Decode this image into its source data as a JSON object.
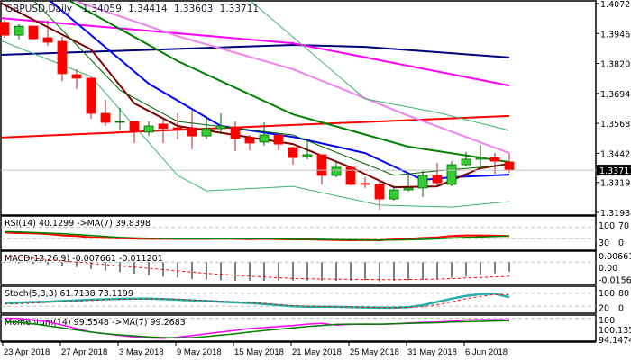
{
  "chart_data": {
    "type": "candlestick",
    "symbol_title": "GBPUSD,Daily",
    "ohlc_readout": [
      "1.34059",
      "1.34414",
      "1.33603",
      "1.33711"
    ],
    "current_price": "1.33711",
    "price_range": [
      1.31935,
      1.4072
    ],
    "price_ticks": [
      "1.40720",
      "1.39460",
      "1.38200",
      "1.36940",
      "1.35680",
      "1.34420",
      "1.33195",
      "1.31935"
    ],
    "date_ticks": [
      {
        "i": 0,
        "label": "23 Apr 2018"
      },
      {
        "i": 4,
        "label": "27 Apr 2018"
      },
      {
        "i": 8,
        "label": "3 May 2018"
      },
      {
        "i": 12,
        "label": "9 May 2018"
      },
      {
        "i": 16,
        "label": "15 May 2018"
      },
      {
        "i": 20,
        "label": "21 May 2018"
      },
      {
        "i": 24,
        "label": "25 May 2018"
      },
      {
        "i": 28,
        "label": "31 May 2018"
      },
      {
        "i": 32,
        "label": "6 Jun 2018"
      }
    ],
    "candles": [
      [
        1.3993,
        1.4004,
        1.3928,
        1.3939
      ],
      [
        1.3939,
        1.3985,
        1.3921,
        1.3977
      ],
      [
        1.3977,
        1.3977,
        1.3921,
        1.3924
      ],
      [
        1.3928,
        1.4,
        1.3894,
        1.3909
      ],
      [
        1.3913,
        1.3932,
        1.3746,
        1.3777
      ],
      [
        1.3773,
        1.3796,
        1.3712,
        1.3758
      ],
      [
        1.3758,
        1.3758,
        1.3587,
        1.361
      ],
      [
        1.361,
        1.3667,
        1.3557,
        1.3572
      ],
      [
        1.3574,
        1.3633,
        1.3538,
        1.3576
      ],
      [
        1.3576,
        1.3576,
        1.3485,
        1.3534
      ],
      [
        1.3531,
        1.3576,
        1.3515,
        1.3557
      ],
      [
        1.3565,
        1.3595,
        1.3485,
        1.3546
      ],
      [
        1.3549,
        1.361,
        1.35,
        1.3542
      ],
      [
        1.3549,
        1.3621,
        1.3459,
        1.3515
      ],
      [
        1.3515,
        1.3599,
        1.35,
        1.3546
      ],
      [
        1.3546,
        1.361,
        1.3523,
        1.3557
      ],
      [
        1.3553,
        1.3576,
        1.3451,
        1.3504
      ],
      [
        1.3508,
        1.3519,
        1.3455,
        1.3485
      ],
      [
        1.3489,
        1.3572,
        1.3474,
        1.3519
      ],
      [
        1.3519,
        1.3519,
        1.3455,
        1.3481
      ],
      [
        1.3466,
        1.347,
        1.3394,
        1.3424
      ],
      [
        1.3428,
        1.3493,
        1.3417,
        1.3436
      ],
      [
        1.3436,
        1.3436,
        1.3311,
        1.3349
      ],
      [
        1.3349,
        1.3409,
        1.3341,
        1.3383
      ],
      [
        1.3383,
        1.3383,
        1.3307,
        1.3311
      ],
      [
        1.3315,
        1.3341,
        1.3296,
        1.3313
      ],
      [
        1.3311,
        1.333,
        1.3205,
        1.325
      ],
      [
        1.325,
        1.3307,
        1.3243,
        1.3288
      ],
      [
        1.3288,
        1.3349,
        1.3281,
        1.3296
      ],
      [
        1.3296,
        1.3368,
        1.3258,
        1.3349
      ],
      [
        1.3349,
        1.3402,
        1.3307,
        1.3318
      ],
      [
        1.3311,
        1.3409,
        1.3303,
        1.3394
      ],
      [
        1.3394,
        1.3447,
        1.3387,
        1.3417
      ],
      [
        1.3417,
        1.3477,
        1.3387,
        1.3424
      ],
      [
        1.3424,
        1.3443,
        1.3356,
        1.3409
      ],
      [
        1.34059,
        1.34414,
        1.33603,
        1.33711
      ]
    ],
    "overlays": [
      {
        "name": "ma-navy",
        "color": "#00007f",
        "width": 2,
        "points": [
          [
            -0.3,
            1.3856
          ],
          [
            20,
            1.3898
          ],
          [
            25,
            1.389
          ],
          [
            35,
            1.3845
          ]
        ]
      },
      {
        "name": "ma-magenta",
        "color": "#ff00ff",
        "width": 2,
        "points": [
          [
            -0.3,
            1.4011
          ],
          [
            20,
            1.3905
          ],
          [
            35,
            1.3727
          ]
        ]
      },
      {
        "name": "ma-red",
        "color": "#ff0000",
        "width": 2,
        "points": [
          [
            -0.3,
            1.3508
          ],
          [
            20,
            1.3561
          ],
          [
            35,
            1.3599
          ]
        ]
      },
      {
        "name": "ma-violet",
        "color": "#ee82ee",
        "width": 2,
        "points": [
          [
            4.7,
            1.4087
          ],
          [
            12,
            1.3935
          ],
          [
            20,
            1.3796
          ],
          [
            28,
            1.36
          ],
          [
            35,
            1.3443
          ]
        ]
      },
      {
        "name": "ma-green",
        "color": "#008000",
        "width": 2,
        "points": [
          [
            4.4,
            1.4087
          ],
          [
            12,
            1.383
          ],
          [
            20,
            1.3606
          ],
          [
            28,
            1.347
          ],
          [
            35,
            1.3405
          ]
        ]
      },
      {
        "name": "ma-blue",
        "color": "#0000ff",
        "width": 2,
        "points": [
          [
            3.1,
            1.4087
          ],
          [
            10,
            1.3735
          ],
          [
            15,
            1.3557
          ],
          [
            20,
            1.3511
          ],
          [
            25,
            1.3443
          ],
          [
            29,
            1.333
          ],
          [
            31,
            1.3341
          ],
          [
            35,
            1.3352
          ]
        ]
      },
      {
        "name": "ma-maroon",
        "color": "#800000",
        "width": 2,
        "points": [
          [
            -0.3,
            1.4076
          ],
          [
            6,
            1.3879
          ],
          [
            9,
            1.3652
          ],
          [
            12,
            1.3557
          ],
          [
            20,
            1.3481
          ],
          [
            24,
            1.3383
          ],
          [
            27,
            1.3299
          ],
          [
            30,
            1.3303
          ],
          [
            33,
            1.3379
          ],
          [
            35,
            1.3398
          ]
        ]
      },
      {
        "name": "bollinger-middle",
        "color": "#006400",
        "width": 1,
        "points": [
          [
            2,
            1.4087
          ],
          [
            8,
            1.3708
          ],
          [
            12,
            1.3576
          ],
          [
            20,
            1.3519
          ],
          [
            27,
            1.3349
          ],
          [
            30,
            1.3368
          ],
          [
            35,
            1.3394
          ]
        ]
      },
      {
        "name": "bollinger-upper",
        "color": "#3cb371",
        "width": 1,
        "points": [
          [
            17,
            1.4087
          ],
          [
            25,
            1.3671
          ],
          [
            30,
            1.3614
          ],
          [
            35,
            1.3538
          ]
        ]
      },
      {
        "name": "bollinger-lower",
        "color": "#3cb371",
        "width": 1,
        "points": [
          [
            -0.3,
            1.3917
          ],
          [
            6,
            1.3765
          ],
          [
            12,
            1.3349
          ],
          [
            14,
            1.3284
          ],
          [
            20,
            1.3303
          ],
          [
            26,
            1.3224
          ],
          [
            31,
            1.3216
          ],
          [
            35,
            1.3239
          ]
        ]
      }
    ],
    "colors": {
      "bull": "#32cd32",
      "bear": "#ff0000",
      "bull_border": "#006400",
      "bear_border": "#b22222"
    },
    "indicators": {
      "rsi": {
        "label": "RSI(14) 40.1299  ->MA(7) 39.8398",
        "range": [
          0,
          100
        ],
        "levels": [
          70,
          30
        ],
        "axis_labels": [
          "100",
          "70",
          "30",
          "0"
        ],
        "series": [
          {
            "name": "rsi",
            "color": "#ff0000",
            "values": [
              52,
              50,
              49,
              47,
              42,
              40,
              35,
              33,
              32,
              31,
              30,
              30,
              30,
              30,
              30,
              31,
              30,
              29,
              30,
              29,
              28,
              28,
              27,
              26,
              25,
              26,
              25,
              28,
              30,
              33,
              35,
              40,
              42,
              42,
              41,
              40.13
            ]
          },
          {
            "name": "rsi-ma",
            "color": "#008000",
            "values": [
              55,
              54,
              52,
              50,
              48,
              45,
              42,
              38,
              35,
              33,
              32,
              31,
              30,
              30,
              30,
              30,
              30,
              30,
              30,
              30,
              29,
              28,
              28,
              27,
              27,
              26,
              26,
              26,
              27,
              28,
              30,
              33,
              35,
              37,
              38,
              39.84
            ]
          }
        ]
      },
      "macd": {
        "label": "MACD(12,26,9) -0.007661 -0.011201",
        "range": [
          -0.015688,
          0.006614
        ],
        "axis_labels": [
          "0.006614",
          "0.00",
          "-0.015688"
        ],
        "histogram": [
          -0.0005,
          -0.001,
          -0.0015,
          -0.002,
          -0.003,
          -0.004,
          -0.0055,
          -0.0068,
          -0.008,
          -0.0092,
          -0.0105,
          -0.0115,
          -0.0125,
          -0.0135,
          -0.014,
          -0.0145,
          -0.015,
          -0.015,
          -0.015,
          -0.0148,
          -0.0148,
          -0.0147,
          -0.0148,
          -0.015,
          -0.0148,
          -0.0145,
          -0.0155,
          -0.0148,
          -0.0145,
          -0.014,
          -0.0135,
          -0.0125,
          -0.0115,
          -0.0103,
          -0.009,
          -0.007661
        ],
        "signal": [
          0.005,
          0.004,
          0.003,
          0.002,
          0.001,
          0,
          -0.001,
          -0.002,
          -0.003,
          -0.004,
          -0.005,
          -0.006,
          -0.007,
          -0.008,
          -0.009,
          -0.0098,
          -0.0105,
          -0.0112,
          -0.0118,
          -0.0125,
          -0.013,
          -0.0133,
          -0.0135,
          -0.0137,
          -0.0138,
          -0.0139,
          -0.014,
          -0.014,
          -0.0139,
          -0.0138,
          -0.0136,
          -0.0132,
          -0.0127,
          -0.0122,
          -0.0117,
          -0.011201
        ]
      },
      "stoch": {
        "label": "Stoch(5,3,3) 61.7138 73.1199",
        "range": [
          0,
          100
        ],
        "levels": [
          80,
          20
        ],
        "axis_labels": [
          "100",
          "80",
          "20",
          "0"
        ],
        "main": [
          35,
          37,
          39,
          41,
          44,
          47,
          50,
          52,
          54,
          55,
          55,
          53,
          50,
          47,
          44,
          41,
          38,
          35,
          30,
          25,
          20,
          18,
          18,
          17,
          16,
          14,
          13,
          13,
          16,
          25,
          40,
          55,
          68,
          76,
          78,
          61.71
        ],
        "signal": [
          30,
          32,
          35,
          38,
          41,
          44,
          47,
          50,
          52,
          53,
          54,
          54,
          52,
          49,
          46,
          43,
          40,
          37,
          33,
          28,
          23,
          20,
          19,
          18,
          17,
          16,
          14,
          13,
          14,
          18,
          27,
          40,
          55,
          66,
          74,
          73.12
        ]
      },
      "momentum": {
        "label": "Momentum(14) 99.5548  ->MA(7) 99.2683",
        "range": [
          94.1474,
          100.1359
        ],
        "levels": [
          100
        ],
        "axis_labels": [
          "100",
          "100.1359",
          "94.1474"
        ],
        "series": [
          {
            "name": "momentum",
            "color": "#ff00ff",
            "values": [
              100.0,
              99.9,
              99.5,
              99.0,
              98.0,
              97.0,
              96.0,
              95.5,
              95.0,
              94.6,
              94.3,
              94.2,
              94.5,
              95.0,
              95.5,
              96.0,
              96.5,
              97.0,
              97.3,
              97.6,
              97.9,
              98.3,
              98.5,
              98.0,
              98.2,
              98.3,
              98.2,
              98.4,
              98.6,
              98.8,
              98.9,
              99.1,
              99.5,
              99.6,
              99.6,
              99.55
            ]
          },
          {
            "name": "momentum-ma",
            "color": "#008000",
            "values": [
              99.0,
              98.8,
              98.4,
              97.8,
              97.2,
              96.6,
              96.0,
              95.5,
              95.2,
              94.9,
              94.6,
              94.4,
              94.3,
              94.4,
              94.7,
              95.1,
              95.5,
              96.0,
              96.4,
              96.8,
              97.2,
              97.6,
              97.9,
              98.2,
              98.3,
              98.3,
              98.3,
              98.4,
              98.5,
              98.6,
              98.7,
              98.9,
              99.0,
              99.1,
              99.2,
              99.27
            ]
          }
        ]
      }
    }
  }
}
